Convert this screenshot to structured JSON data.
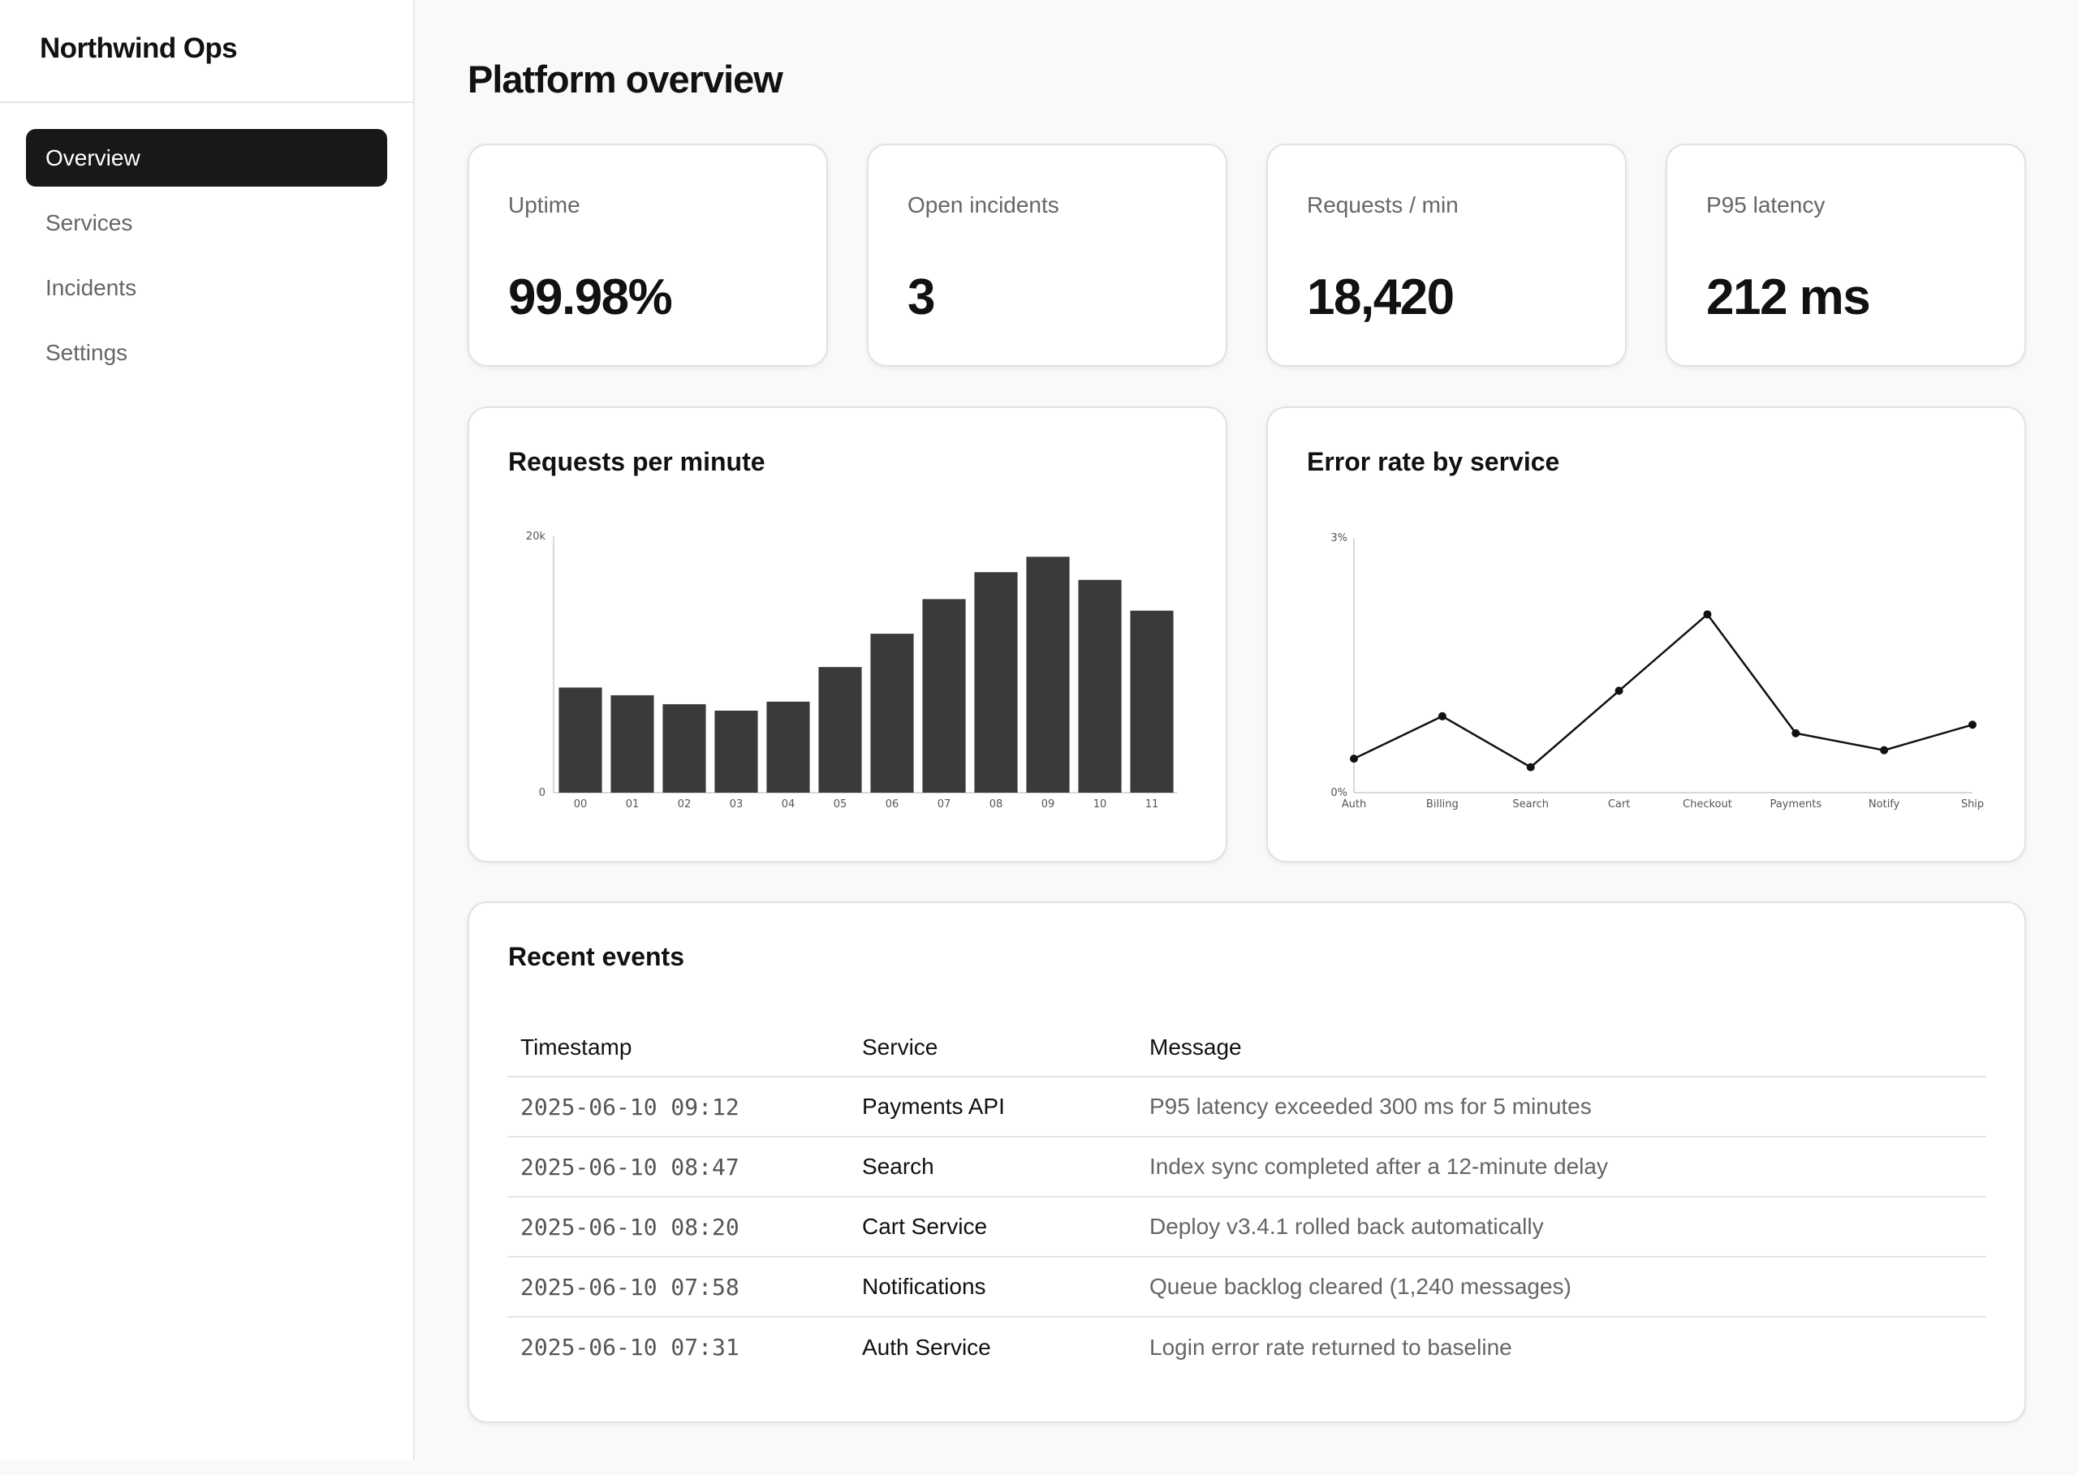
{
  "app": {
    "brand": "Northwind Ops"
  },
  "sidebar": {
    "items": [
      {
        "label": "Overview",
        "active": true
      },
      {
        "label": "Services",
        "active": false
      },
      {
        "label": "Incidents",
        "active": false
      },
      {
        "label": "Settings",
        "active": false
      }
    ]
  },
  "page": {
    "title": "Platform overview"
  },
  "kpis": [
    {
      "label": "Uptime",
      "value": "99.98%"
    },
    {
      "label": "Open incidents",
      "value": "3"
    },
    {
      "label": "Requests / min",
      "value": "18,420"
    },
    {
      "label": "P95 latency",
      "value": "212 ms"
    }
  ],
  "chart_data": [
    {
      "type": "bar",
      "title": "Requests per minute",
      "categories": [
        "00",
        "01",
        "02",
        "03",
        "04",
        "05",
        "06",
        "07",
        "08",
        "09",
        "10",
        "11"
      ],
      "values": [
        8200,
        7600,
        6900,
        6400,
        7100,
        9800,
        12400,
        15100,
        17200,
        18400,
        16600,
        14200
      ],
      "ylim": [
        0,
        20000
      ],
      "ytick_labels": [
        "0",
        "20k"
      ],
      "color": "#3a3a3a",
      "grid": false
    },
    {
      "type": "line",
      "title": "Error rate by service",
      "categories": [
        "Auth",
        "Billing",
        "Search",
        "Cart",
        "Checkout",
        "Payments",
        "Notify",
        "Ship"
      ],
      "values": [
        0.4,
        0.9,
        0.3,
        1.2,
        2.1,
        0.7,
        0.5,
        0.8
      ],
      "ylim": [
        0,
        3
      ],
      "ytick_labels": [
        "0%",
        "3%"
      ],
      "color": "#111111",
      "grid": false
    }
  ],
  "events": {
    "title": "Recent events",
    "columns": [
      "Timestamp",
      "Service",
      "Message"
    ],
    "rows": [
      [
        "2025-06-10 09:12",
        "Payments API",
        "P95 latency exceeded 300 ms for 5 minutes"
      ],
      [
        "2025-06-10 08:47",
        "Search",
        "Index sync completed after a 12-minute delay"
      ],
      [
        "2025-06-10 08:20",
        "Cart Service",
        "Deploy v3.4.1 rolled back automatically"
      ],
      [
        "2025-06-10 07:58",
        "Notifications",
        "Queue backlog cleared (1,240 messages)"
      ],
      [
        "2025-06-10 07:31",
        "Auth Service",
        "Login error rate returned to baseline"
      ]
    ]
  }
}
